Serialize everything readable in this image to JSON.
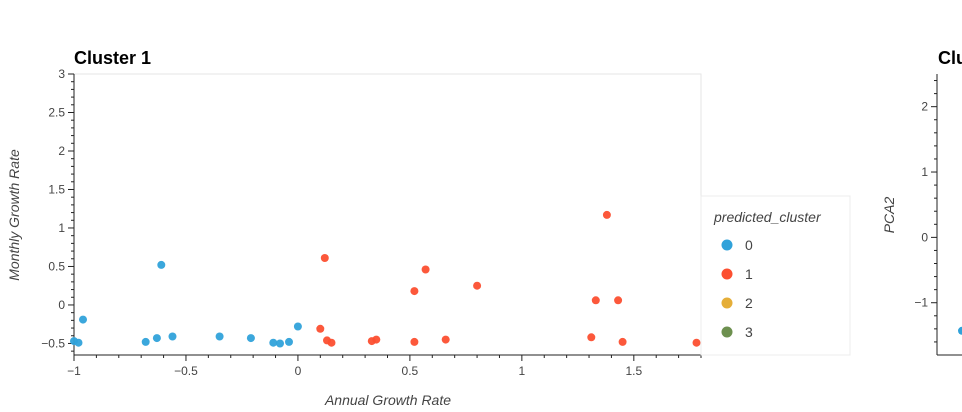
{
  "colors": {
    "cluster_0": "#30a2da",
    "cluster_1": "#fc4f30",
    "cluster_2": "#e5ae38",
    "cluster_3": "#6d904f"
  },
  "chart_data": [
    {
      "type": "scatter",
      "title": "Cluster 1",
      "xlabel": "Annual Growth Rate",
      "ylabel": "Monthly Growth Rate",
      "xlim": [
        -1,
        1.8
      ],
      "ylim": [
        -0.65,
        3
      ],
      "xticks": [
        -1,
        -0.5,
        0,
        0.5,
        1,
        1.5
      ],
      "xtick_labels": [
        "−1",
        "−0.5",
        "0",
        "0.5",
        "1",
        "1.5"
      ],
      "yticks": [
        -0.5,
        0,
        0.5,
        1,
        1.5,
        2,
        2.5,
        3
      ],
      "ytick_labels": [
        "−0.5",
        "0",
        "0.5",
        "1",
        "1.5",
        "2",
        "2.5",
        "3"
      ],
      "legend": {
        "title": "predicted_cluster",
        "position": "right",
        "entries": [
          "0",
          "1",
          "2",
          "3"
        ]
      },
      "series": [
        {
          "name": "0",
          "points": [
            [
              -1.0,
              -0.47
            ],
            [
              -0.98,
              -0.49
            ],
            [
              -0.96,
              -0.19
            ],
            [
              -0.68,
              -0.48
            ],
            [
              -0.63,
              -0.43
            ],
            [
              -0.61,
              0.52
            ],
            [
              -0.56,
              -0.41
            ],
            [
              -0.35,
              -0.41
            ],
            [
              -0.21,
              -0.43
            ],
            [
              -0.11,
              -0.49
            ],
            [
              -0.08,
              -0.5
            ],
            [
              -0.04,
              -0.48
            ],
            [
              0.0,
              -0.28
            ]
          ]
        },
        {
          "name": "1",
          "points": [
            [
              0.1,
              -0.31
            ],
            [
              0.12,
              0.61
            ],
            [
              0.13,
              -0.46
            ],
            [
              0.15,
              -0.49
            ],
            [
              0.33,
              -0.47
            ],
            [
              0.35,
              -0.45
            ],
            [
              0.52,
              0.18
            ],
            [
              0.52,
              -0.48
            ],
            [
              0.57,
              0.46
            ],
            [
              0.66,
              -0.45
            ],
            [
              0.8,
              0.25
            ],
            [
              1.31,
              -0.42
            ],
            [
              1.33,
              0.06
            ],
            [
              1.38,
              1.17
            ],
            [
              1.43,
              0.06
            ],
            [
              1.45,
              -0.48
            ],
            [
              1.78,
              -0.49
            ]
          ]
        },
        {
          "name": "2",
          "points": []
        },
        {
          "name": "3",
          "points": []
        }
      ]
    },
    {
      "type": "scatter",
      "title": "Clu",
      "xlabel": "",
      "ylabel": "PCA2",
      "ylim": [
        -1.8,
        2.5
      ],
      "yticks": [
        -1,
        0,
        1,
        2
      ],
      "ytick_labels": [
        "−1",
        "0",
        "1",
        "2"
      ],
      "series": [
        {
          "name": "0",
          "points": [
            [
              0,
              -1.43
            ]
          ]
        }
      ]
    }
  ]
}
